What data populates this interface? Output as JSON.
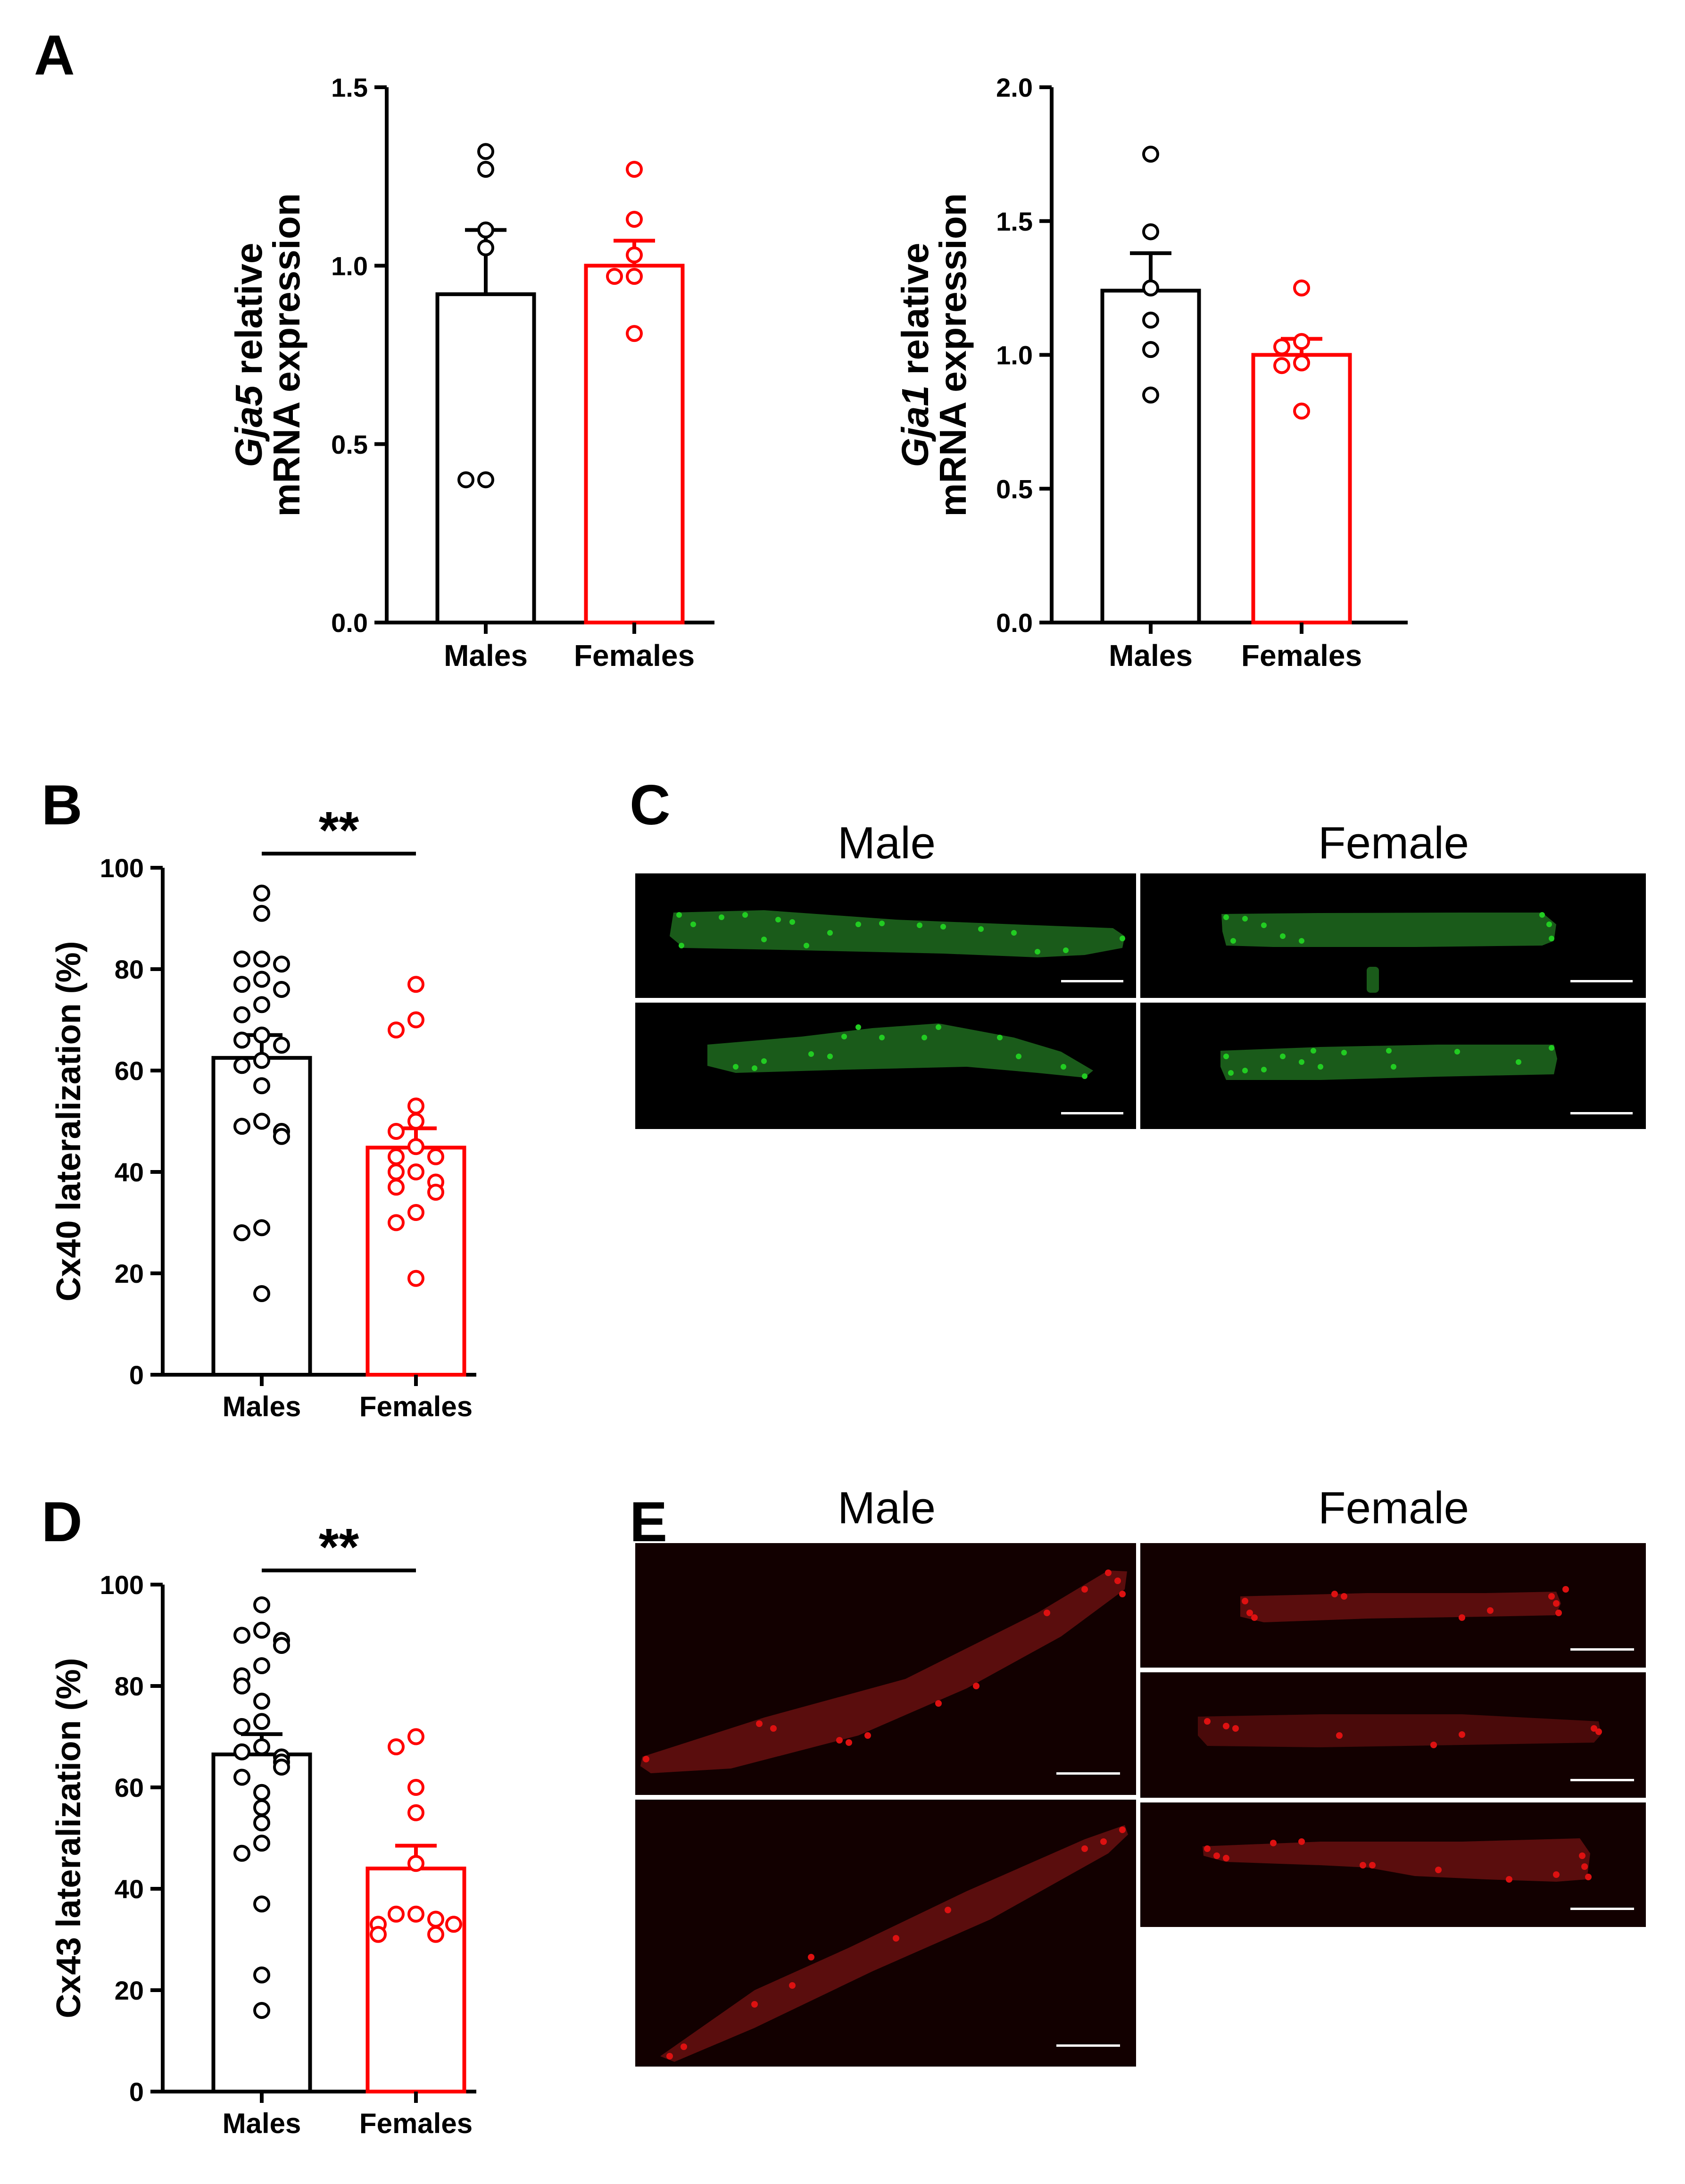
{
  "panel_letters": {
    "A": "A",
    "B": "B",
    "C": "C",
    "D": "D",
    "E": "E"
  },
  "micrograph_panels": {
    "C": {
      "col_labels": [
        "Male",
        "Female"
      ],
      "stain": "Cx40",
      "color": "#2ec12e"
    },
    "E": {
      "col_labels": [
        "Male",
        "Female"
      ],
      "stain": "Cx43",
      "color": "#e01010"
    }
  },
  "colors": {
    "males": "#000000",
    "females": "#ff0000",
    "cx40": "#22cc22",
    "cx43": "#dd1111"
  },
  "chart_data": [
    {
      "id": "A1",
      "type": "bar",
      "ylabel_italic": "Gja5",
      "ylabel_line1_rest": " relative",
      "ylabel_line2": "mRNA expression",
      "categories": [
        "Males",
        "Females"
      ],
      "ylim": [
        0,
        1.5
      ],
      "yticks": [
        0.0,
        0.5,
        1.0,
        1.5
      ],
      "ytick_labels": [
        "0.0",
        "0.5",
        "1.0",
        "1.5"
      ],
      "means": [
        0.92,
        1.0
      ],
      "sem": [
        0.18,
        0.07
      ],
      "points": [
        [
          1.32,
          1.27,
          1.1,
          1.05,
          0.4,
          0.4
        ],
        [
          1.27,
          1.13,
          1.03,
          0.97,
          0.97,
          0.81
        ]
      ]
    },
    {
      "id": "A2",
      "type": "bar",
      "ylabel_italic": "Gja1",
      "ylabel_line1_rest": " relative",
      "ylabel_line2": "mRNA expression",
      "categories": [
        "Males",
        "Females"
      ],
      "ylim": [
        0,
        2.0
      ],
      "yticks": [
        0.0,
        0.5,
        1.0,
        1.5,
        2.0
      ],
      "ytick_labels": [
        "0.0",
        "0.5",
        "1.0",
        "1.5",
        "2.0"
      ],
      "means": [
        1.24,
        1.0
      ],
      "sem": [
        0.14,
        0.06
      ],
      "points": [
        [
          1.75,
          1.46,
          1.25,
          1.13,
          1.02,
          0.85
        ],
        [
          1.25,
          1.05,
          1.03,
          0.97,
          0.96,
          0.79
        ]
      ]
    },
    {
      "id": "B",
      "type": "bar",
      "ylabel": "Cx40 lateralization (%)",
      "categories": [
        "Males",
        "Females"
      ],
      "ylim": [
        0,
        100
      ],
      "yticks": [
        0,
        20,
        40,
        60,
        80,
        100
      ],
      "ytick_labels": [
        "0",
        "20",
        "40",
        "60",
        "80",
        "100"
      ],
      "means": [
        62.5,
        44.8
      ],
      "sem": [
        4.5,
        3.8
      ],
      "significance": "**",
      "points": [
        [
          95,
          91,
          82,
          82,
          81,
          78,
          77,
          76,
          73,
          71,
          67,
          66,
          65,
          62,
          61,
          57,
          50,
          49,
          48,
          47,
          29,
          28,
          16
        ],
        [
          77,
          70,
          68,
          53,
          50,
          48,
          45,
          43,
          43,
          40,
          40,
          38,
          37,
          36,
          32,
          30,
          19
        ]
      ]
    },
    {
      "id": "D",
      "type": "bar",
      "ylabel": "Cx43 lateralization (%)",
      "categories": [
        "Males",
        "Females"
      ],
      "ylim": [
        0,
        100
      ],
      "yticks": [
        0,
        20,
        40,
        60,
        80,
        100
      ],
      "ytick_labels": [
        "0",
        "20",
        "40",
        "60",
        "80",
        "100"
      ],
      "means": [
        66.5,
        44.0
      ],
      "sem": [
        4.0,
        4.5
      ],
      "significance": "**",
      "points": [
        [
          96,
          91,
          90,
          89,
          88,
          84,
          82,
          80,
          77,
          73,
          72,
          68,
          67,
          66,
          65,
          64,
          62,
          59,
          56,
          53,
          49,
          47,
          37,
          23,
          16
        ],
        [
          70,
          68,
          60,
          55,
          45,
          35,
          35,
          34,
          33,
          33,
          31,
          31
        ]
      ]
    }
  ]
}
